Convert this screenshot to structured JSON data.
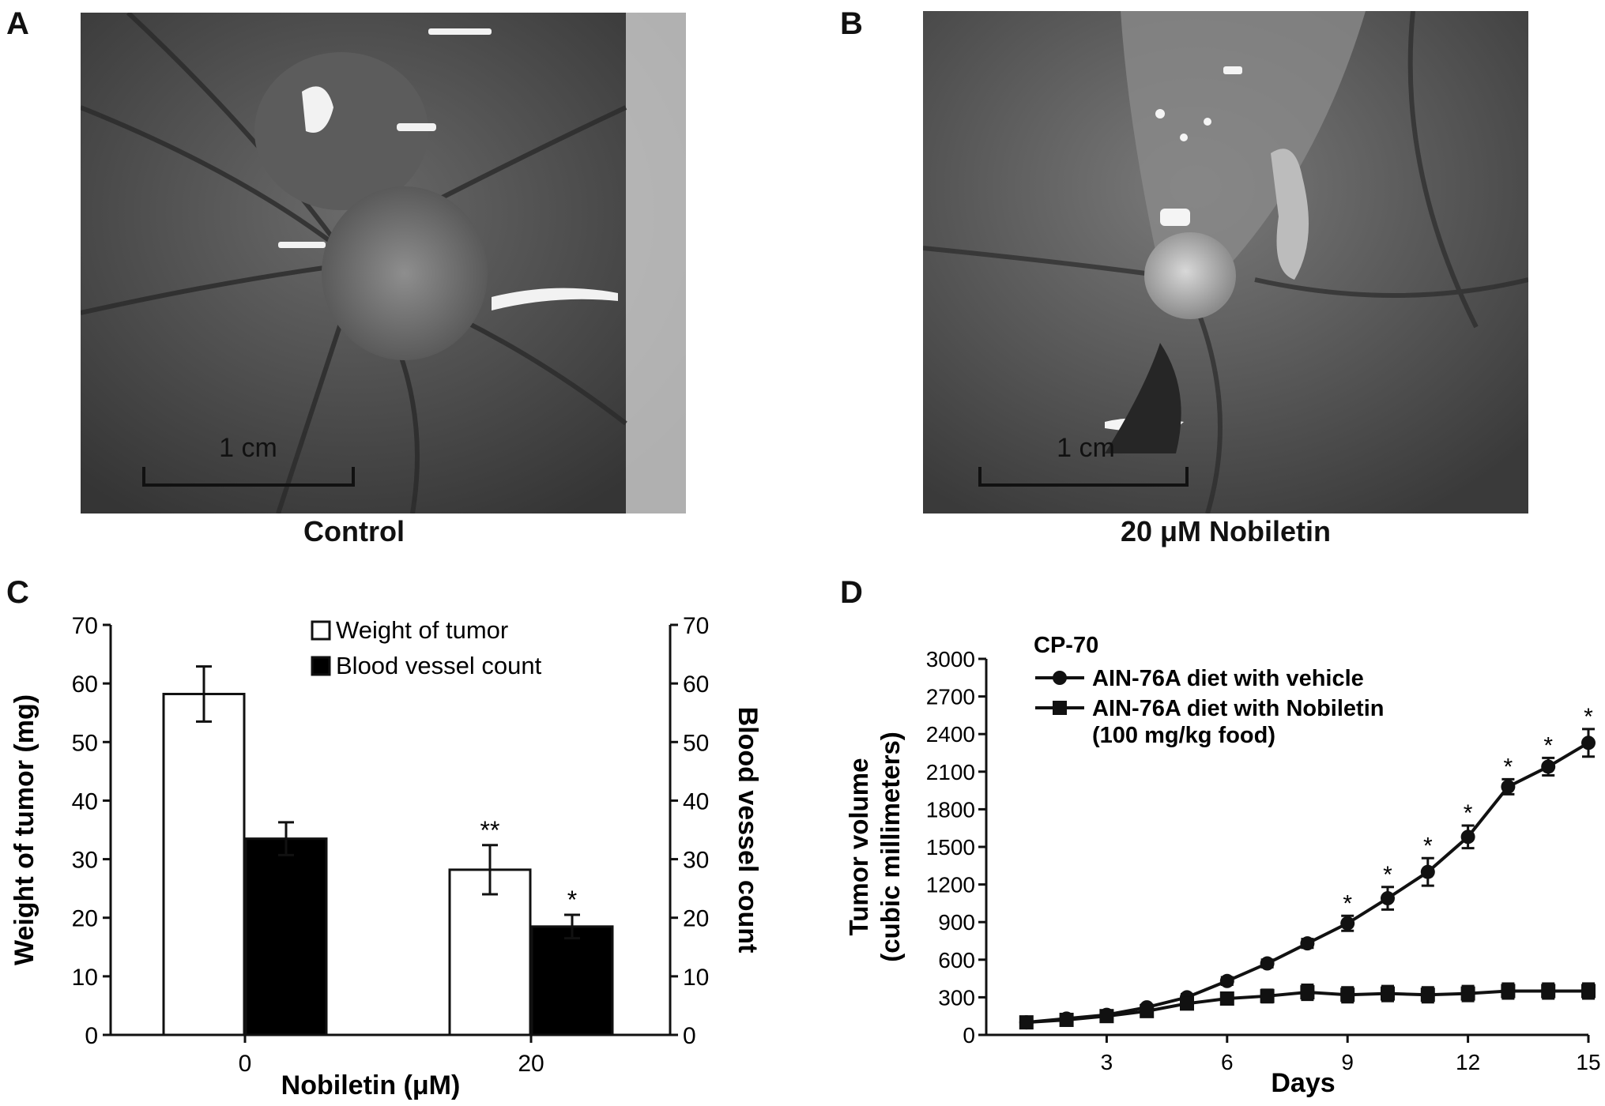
{
  "panels": {
    "a": {
      "letter": "A",
      "caption": "Control",
      "scale_label": "1 cm"
    },
    "b": {
      "letter": "B",
      "caption": "20 μM Nobiletin",
      "scale_label": "1 cm"
    },
    "c": {
      "letter": "C"
    },
    "d": {
      "letter": "D"
    }
  },
  "chart_data": [
    {
      "type": "bar",
      "title": "",
      "xlabel": "Nobiletin (μM)",
      "ylabel": "Weight of tumor (mg)",
      "y2label": "Blood vessel count",
      "categories": [
        "0",
        "20"
      ],
      "ylim": [
        0,
        70
      ],
      "y_ticks": [
        0,
        10,
        20,
        30,
        40,
        50,
        60,
        70
      ],
      "legend_position": "top-right",
      "series": [
        {
          "name": "Weight of tumor",
          "values": [
            58.2,
            28.2
          ],
          "errors": [
            4.7,
            4.2
          ],
          "color": "#ffffff",
          "axis": "left",
          "significance": [
            "",
            "**"
          ]
        },
        {
          "name": "Blood vessel count",
          "values": [
            33.5,
            18.5
          ],
          "errors": [
            2.8,
            2.0
          ],
          "color": "#000000",
          "axis": "right",
          "significance": [
            "",
            "*"
          ]
        }
      ]
    },
    {
      "type": "line",
      "title": "",
      "annotation": "CP-70",
      "xlabel": "Days",
      "ylabel": "Tumor volume\n(cubic millimeters)",
      "xlim": [
        0,
        15
      ],
      "ylim": [
        0,
        3000
      ],
      "x_ticks": [
        3,
        6,
        9,
        12,
        15
      ],
      "y_ticks": [
        0,
        300,
        600,
        900,
        1200,
        1500,
        1800,
        2100,
        2400,
        2700,
        3000
      ],
      "legend_position": "top-left",
      "x": [
        1,
        2,
        3,
        4,
        5,
        6,
        7,
        8,
        9,
        10,
        11,
        12,
        13,
        14,
        15
      ],
      "series": [
        {
          "name": "AIN-76A diet with vehicle",
          "marker": "circle",
          "values": [
            100,
            130,
            160,
            220,
            300,
            430,
            570,
            730,
            890,
            1090,
            1300,
            1580,
            1980,
            2140,
            2330
          ],
          "errors": [
            15,
            15,
            15,
            20,
            25,
            30,
            30,
            35,
            60,
            90,
            110,
            90,
            60,
            70,
            110
          ],
          "significance": [
            "",
            "",
            "",
            "",
            "",
            "",
            "",
            "",
            "*",
            "*",
            "*",
            "*",
            "*",
            "*",
            "*"
          ]
        },
        {
          "name": "AIN-76A diet with Nobiletin\n(100 mg/kg food)",
          "marker": "square",
          "values": [
            100,
            120,
            150,
            190,
            250,
            290,
            310,
            340,
            320,
            330,
            320,
            330,
            350,
            350,
            350
          ],
          "errors": [
            15,
            15,
            15,
            20,
            25,
            30,
            50,
            60,
            60,
            60,
            60,
            60,
            60,
            60,
            60
          ]
        }
      ]
    }
  ]
}
